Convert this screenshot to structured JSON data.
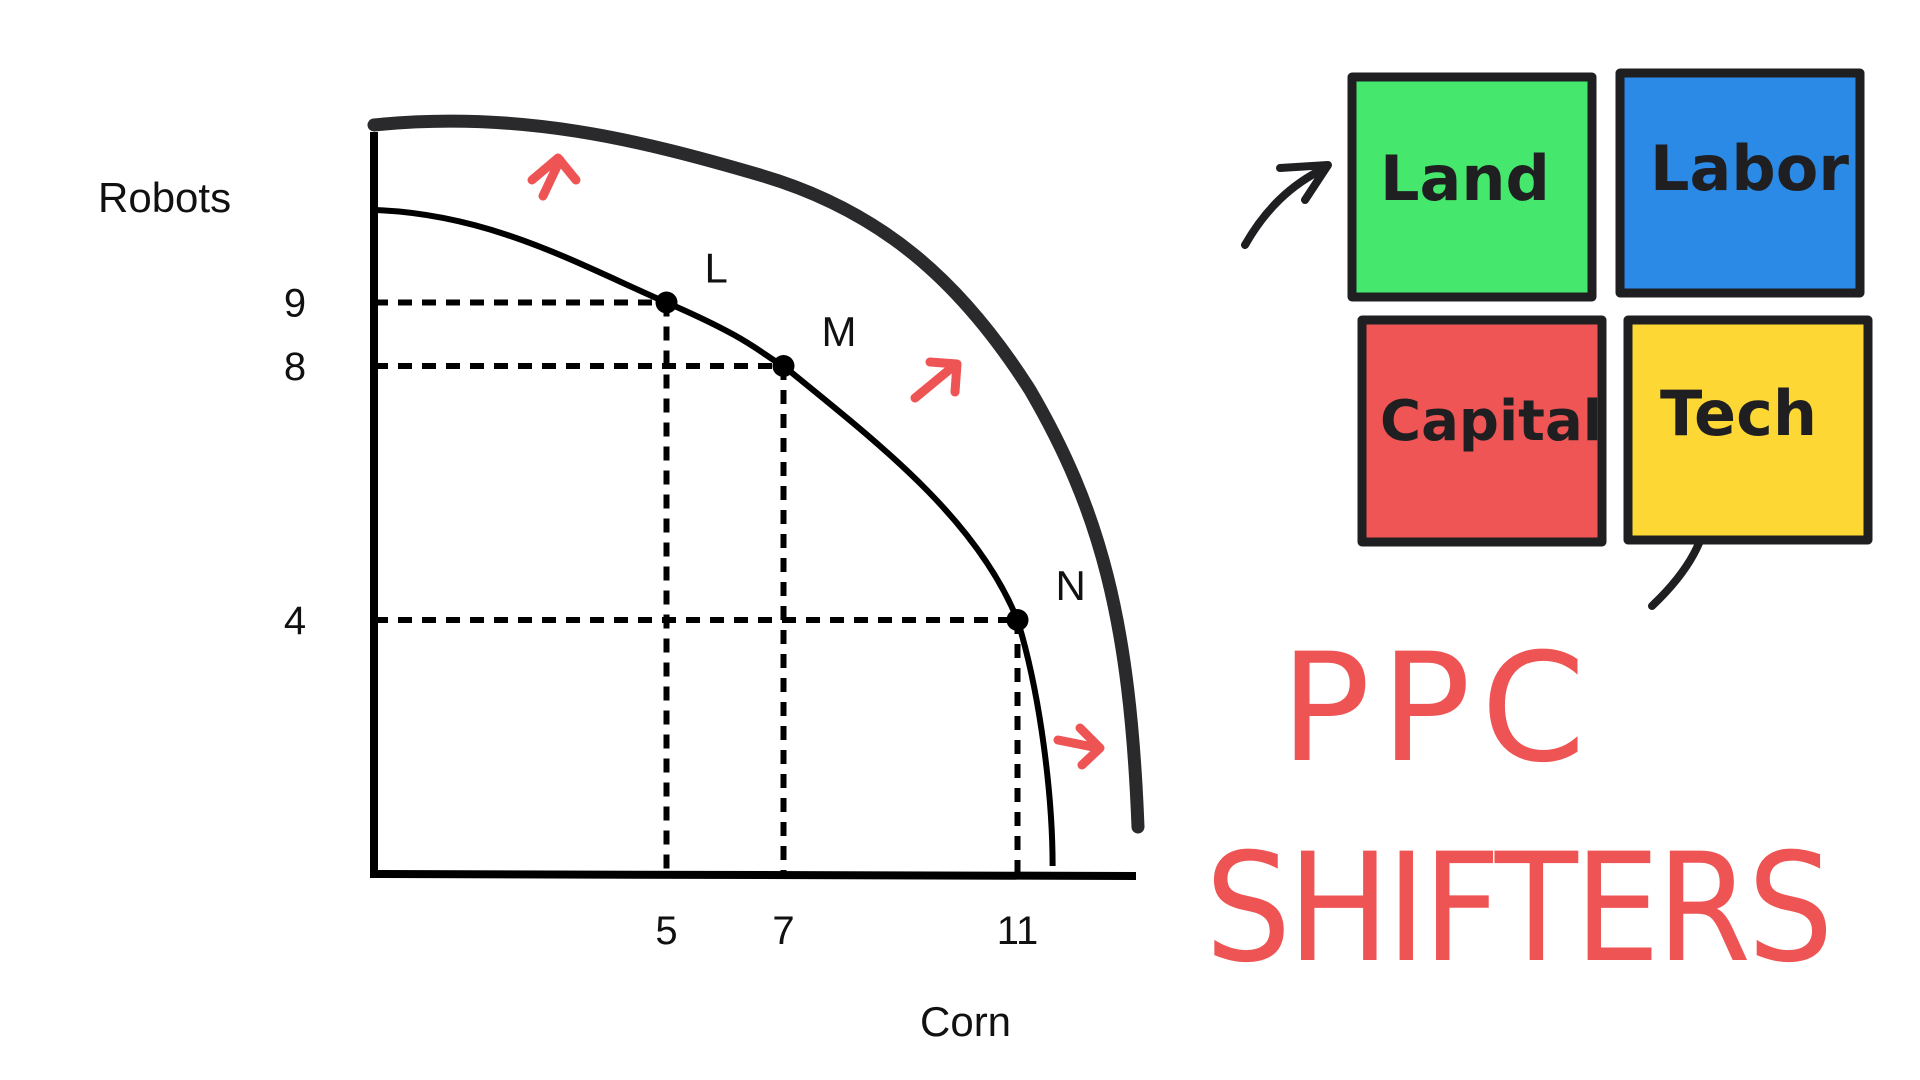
{
  "chart_data": {
    "type": "line",
    "xlabel": "Corn",
    "ylabel": "Robots",
    "x_ticks": [
      5,
      7,
      11
    ],
    "y_ticks": [
      9,
      8,
      4
    ],
    "points": [
      {
        "label": "L",
        "x": 5,
        "y": 9
      },
      {
        "label": "M",
        "x": 7,
        "y": 8
      },
      {
        "label": "N",
        "x": 11,
        "y": 4
      }
    ],
    "dashed_guides": true,
    "curves": [
      "original PPC",
      "shifted outward PPC"
    ]
  },
  "shifters": [
    {
      "label": "Land",
      "color": "#45e86d"
    },
    {
      "label": "Labor",
      "color": "#2b8ae6"
    },
    {
      "label": "Capital",
      "color": "#ef5555"
    },
    {
      "label": "Tech",
      "color": "#fdd835"
    }
  ],
  "title": {
    "line1": "PPC",
    "line2": "SHIFTERS",
    "color": "#ef5454"
  },
  "colors": {
    "ink": "#1f1f22",
    "arrow_red": "#ef5454"
  }
}
